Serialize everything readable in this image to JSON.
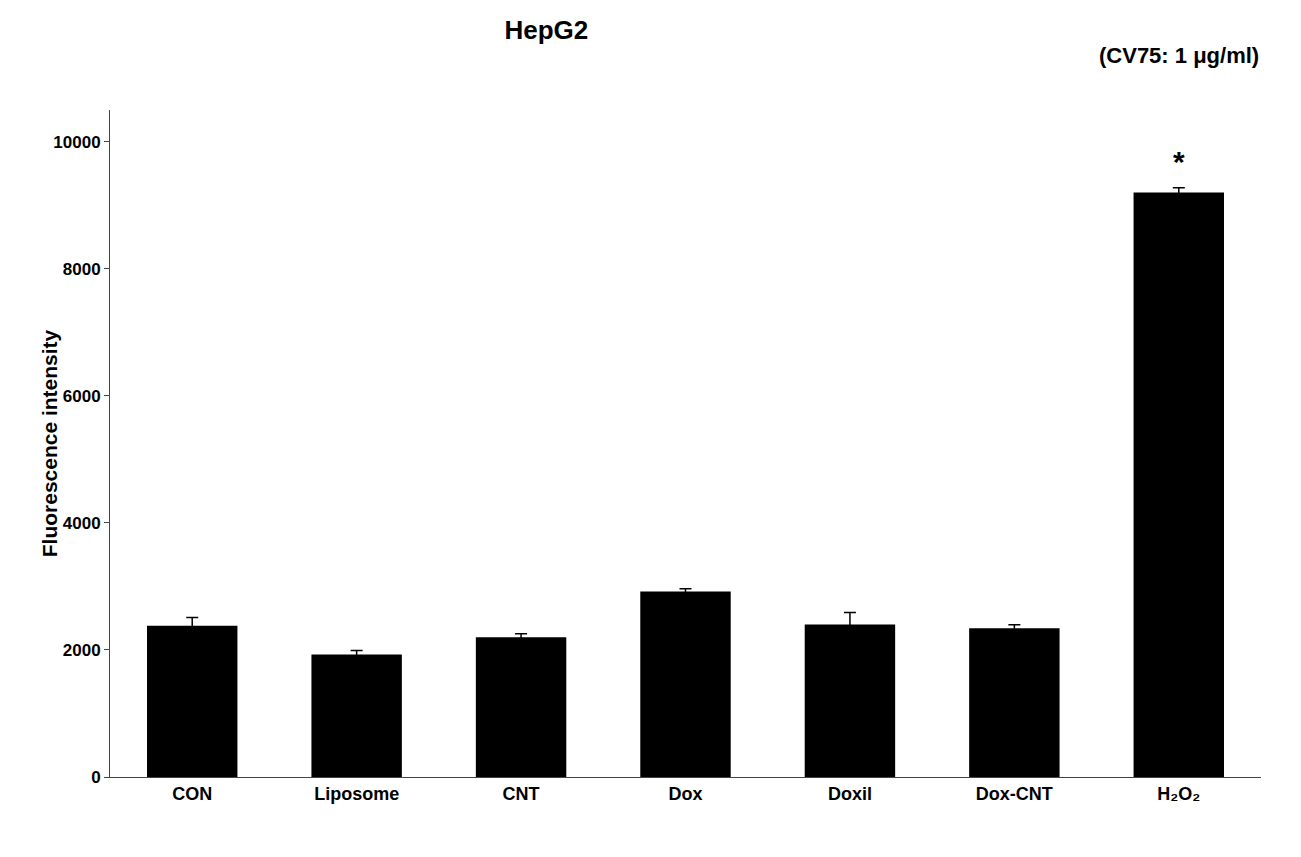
{
  "chart_data": {
    "type": "bar",
    "title": "HepG2",
    "subtitle": "(CV75: 1 μg/ml)",
    "ylabel": "Fluorescence intensity",
    "categories": [
      "CON",
      "Liposome",
      "CNT",
      "Dox",
      "Doxil",
      "Dox-CNT",
      "H₂O₂"
    ],
    "values": [
      2380,
      1930,
      2200,
      2920,
      2400,
      2340,
      9200
    ],
    "errors": [
      130,
      60,
      55,
      45,
      190,
      55,
      75
    ],
    "color": "#000000",
    "ylim": [
      0,
      10500
    ],
    "yticks": [
      0,
      2000,
      4000,
      6000,
      8000,
      10000
    ],
    "grid": false,
    "annotations": [
      {
        "text": "*",
        "x": "H₂O₂"
      }
    ]
  }
}
